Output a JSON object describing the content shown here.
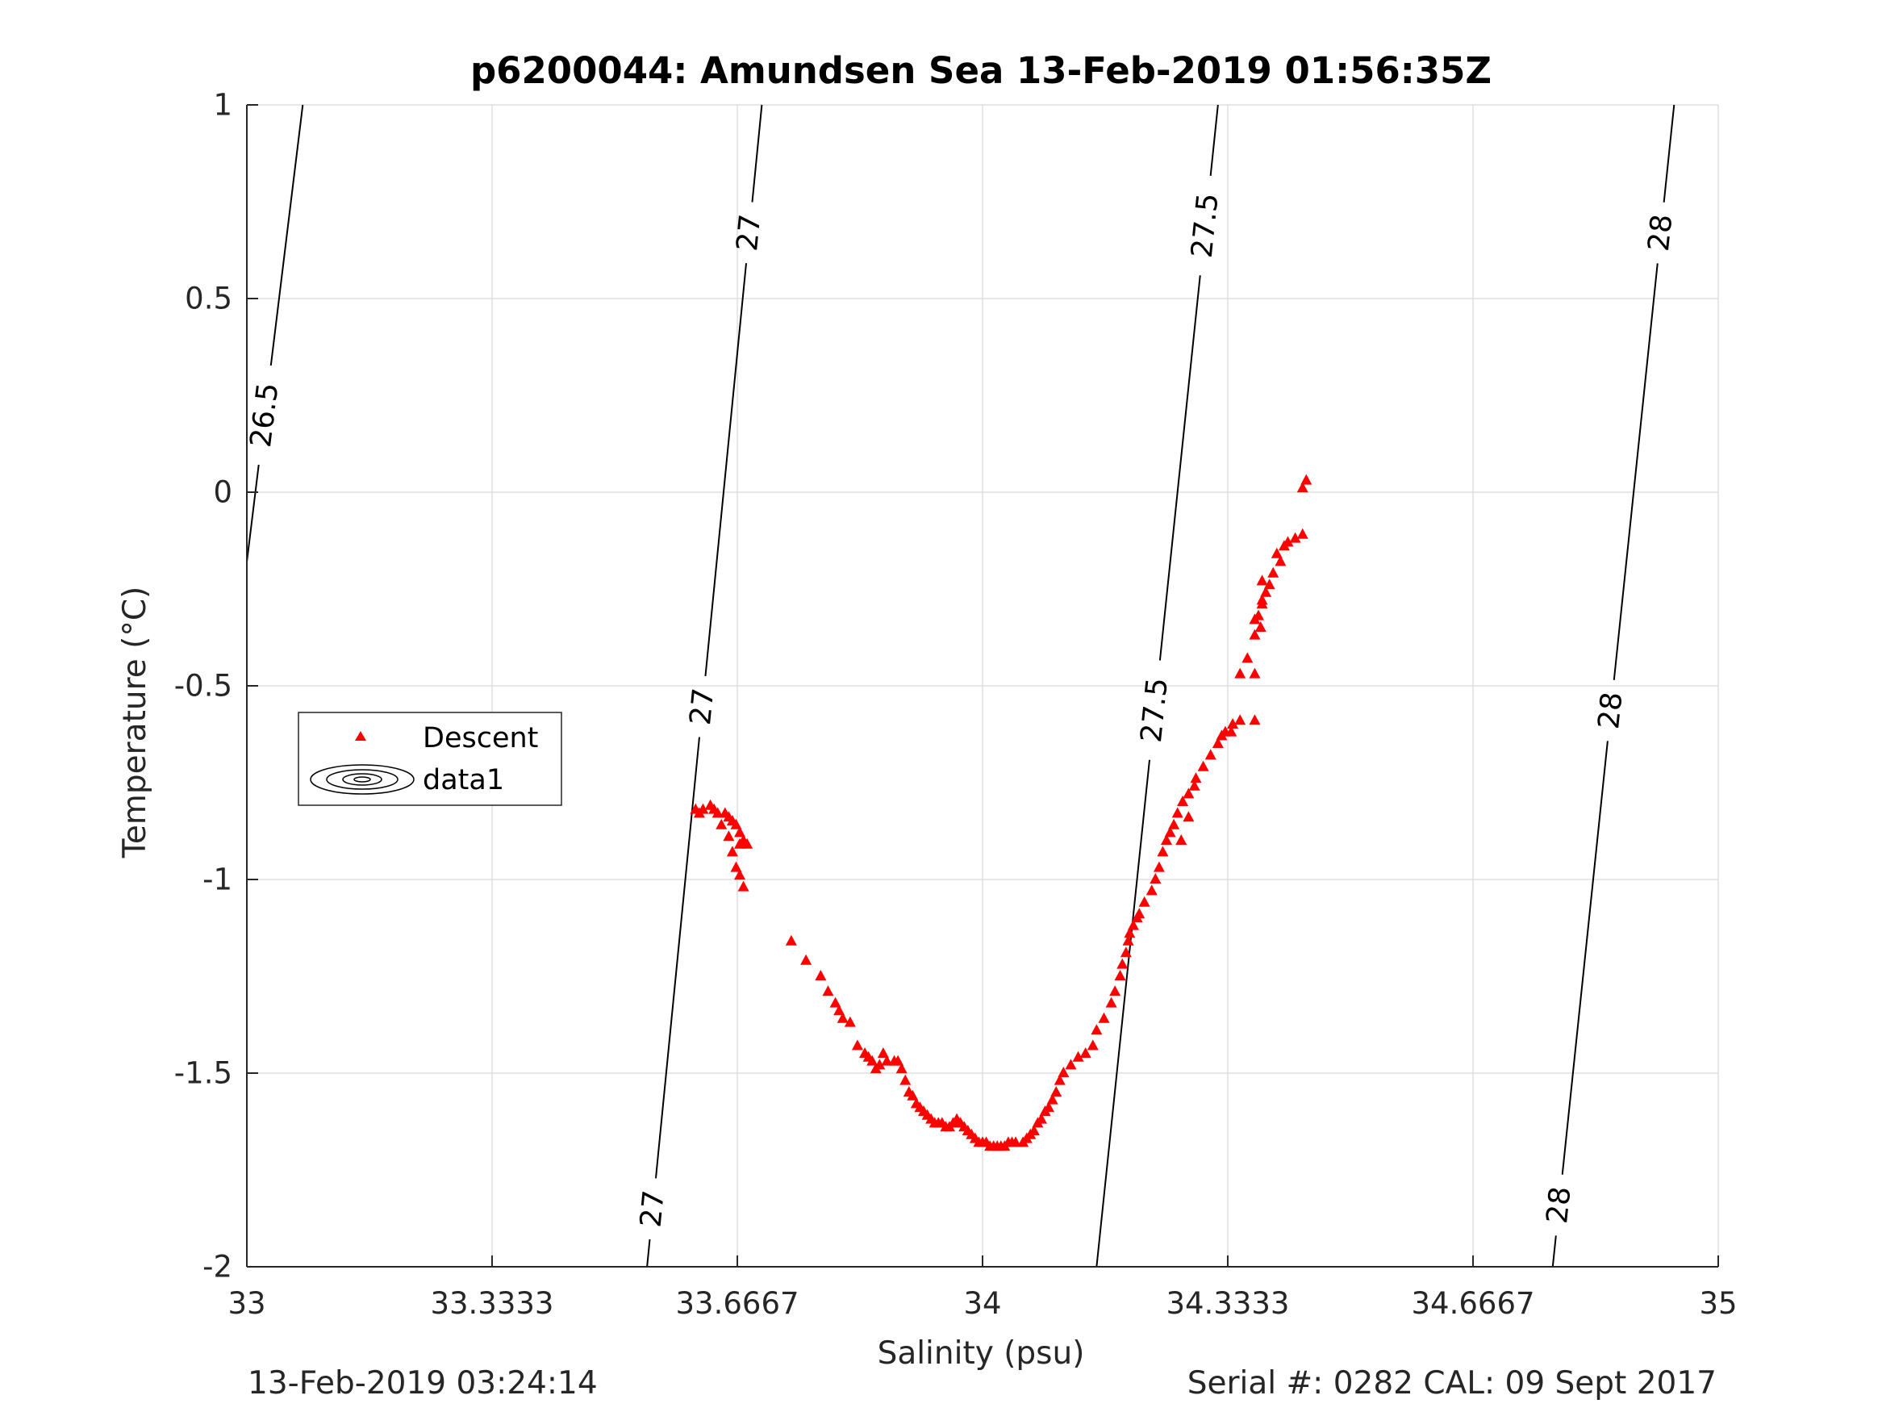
{
  "chart_data": {
    "type": "scatter",
    "title": "p6200044: Amundsen Sea 13-Feb-2019 01:56:35Z",
    "xlabel": "Salinity (psu)",
    "ylabel": "Temperature (°C)",
    "xlim": [
      33,
      35
    ],
    "ylim": [
      -2,
      1
    ],
    "xticks": [
      33,
      33.3333,
      33.6667,
      34,
      34.3333,
      34.6667,
      35
    ],
    "xtick_labels": [
      "33",
      "33.3333",
      "33.6667",
      "34",
      "34.3333",
      "34.6667",
      "35"
    ],
    "yticks": [
      -2,
      -1.5,
      -1,
      -0.5,
      0,
      0.5,
      1
    ],
    "ytick_labels": [
      "-2",
      "-1.5",
      "-1",
      "-0.5",
      "0",
      "0.5",
      "1"
    ],
    "grid": true,
    "legend": {
      "placement": "middle-left",
      "entries": [
        "Descent",
        "data1"
      ]
    },
    "series": [
      {
        "name": "Descent",
        "marker": "triangle",
        "color": "#ff0000",
        "points": [
          [
            34.44,
            0.03
          ],
          [
            34.435,
            0.01
          ],
          [
            34.435,
            -0.11
          ],
          [
            34.425,
            -0.12
          ],
          [
            34.415,
            -0.13
          ],
          [
            34.41,
            -0.14
          ],
          [
            34.4,
            -0.16
          ],
          [
            34.405,
            -0.18
          ],
          [
            34.395,
            -0.21
          ],
          [
            34.39,
            -0.24
          ],
          [
            34.385,
            -0.26
          ],
          [
            34.38,
            -0.29
          ],
          [
            34.375,
            -0.32
          ],
          [
            34.378,
            -0.35
          ],
          [
            34.37,
            -0.37
          ],
          [
            34.37,
            -0.33
          ],
          [
            34.38,
            -0.28
          ],
          [
            34.38,
            -0.23
          ],
          [
            34.36,
            -0.43
          ],
          [
            34.35,
            -0.47
          ],
          [
            34.37,
            -0.47
          ],
          [
            34.37,
            -0.59
          ],
          [
            34.35,
            -0.59
          ],
          [
            34.34,
            -0.6
          ],
          [
            34.338,
            -0.62
          ],
          [
            34.33,
            -0.62
          ],
          [
            34.325,
            -0.63
          ],
          [
            34.32,
            -0.65
          ],
          [
            34.31,
            -0.68
          ],
          [
            34.3,
            -0.71
          ],
          [
            34.29,
            -0.74
          ],
          [
            34.288,
            -0.76
          ],
          [
            34.28,
            -0.78
          ],
          [
            34.272,
            -0.8
          ],
          [
            34.265,
            -0.83
          ],
          [
            34.26,
            -0.86
          ],
          [
            34.255,
            -0.88
          ],
          [
            34.25,
            -0.9
          ],
          [
            34.245,
            -0.93
          ],
          [
            34.28,
            -0.84
          ],
          [
            34.27,
            -0.9
          ],
          [
            34.24,
            -0.97
          ],
          [
            34.235,
            -1.0
          ],
          [
            34.23,
            -1.03
          ],
          [
            34.22,
            -1.06
          ],
          [
            34.213,
            -1.09
          ],
          [
            34.205,
            -1.12
          ],
          [
            34.198,
            -1.16
          ],
          [
            34.195,
            -1.19
          ],
          [
            34.19,
            -1.22
          ],
          [
            34.187,
            -1.25
          ],
          [
            34.18,
            -1.29
          ],
          [
            34.175,
            -1.32
          ],
          [
            34.2,
            -1.14
          ],
          [
            34.21,
            -1.1
          ],
          [
            34.165,
            -1.36
          ],
          [
            34.155,
            -1.39
          ],
          [
            34.15,
            -1.43
          ],
          [
            34.14,
            -1.45
          ],
          [
            34.13,
            -1.46
          ],
          [
            34.12,
            -1.48
          ],
          [
            34.11,
            -1.5
          ],
          [
            34.105,
            -1.52
          ],
          [
            34.1,
            -1.55
          ],
          [
            34.095,
            -1.57
          ],
          [
            34.09,
            -1.59
          ],
          [
            34.085,
            -1.6
          ],
          [
            34.08,
            -1.62
          ],
          [
            34.075,
            -1.63
          ],
          [
            34.07,
            -1.65
          ],
          [
            34.065,
            -1.66
          ],
          [
            34.06,
            -1.67
          ],
          [
            34.055,
            -1.68
          ],
          [
            34.045,
            -1.68
          ],
          [
            34.04,
            -1.68
          ],
          [
            34.035,
            -1.68
          ],
          [
            34.03,
            -1.69
          ],
          [
            34.025,
            -1.69
          ],
          [
            34.02,
            -1.69
          ],
          [
            34.015,
            -1.69
          ],
          [
            34.01,
            -1.69
          ],
          [
            34.005,
            -1.68
          ],
          [
            34.0,
            -1.68
          ],
          [
            33.995,
            -1.68
          ],
          [
            33.99,
            -1.67
          ],
          [
            33.985,
            -1.66
          ],
          [
            33.98,
            -1.65
          ],
          [
            33.975,
            -1.64
          ],
          [
            33.97,
            -1.63
          ],
          [
            33.965,
            -1.62
          ],
          [
            33.96,
            -1.63
          ],
          [
            33.955,
            -1.64
          ],
          [
            33.95,
            -1.64
          ],
          [
            33.945,
            -1.63
          ],
          [
            33.94,
            -1.63
          ],
          [
            33.935,
            -1.63
          ],
          [
            33.93,
            -1.62
          ],
          [
            33.925,
            -1.61
          ],
          [
            33.92,
            -1.6
          ],
          [
            33.915,
            -1.59
          ],
          [
            33.91,
            -1.58
          ],
          [
            33.905,
            -1.56
          ],
          [
            33.9,
            -1.55
          ],
          [
            33.895,
            -1.52
          ],
          [
            33.89,
            -1.49
          ],
          [
            33.885,
            -1.47
          ],
          [
            33.88,
            -1.47
          ],
          [
            33.87,
            -1.47
          ],
          [
            33.865,
            -1.45
          ],
          [
            33.86,
            -1.48
          ],
          [
            33.855,
            -1.49
          ],
          [
            33.85,
            -1.47
          ],
          [
            33.845,
            -1.46
          ],
          [
            33.84,
            -1.45
          ],
          [
            33.83,
            -1.43
          ],
          [
            33.82,
            -1.37
          ],
          [
            33.81,
            -1.36
          ],
          [
            33.805,
            -1.34
          ],
          [
            33.8,
            -1.32
          ],
          [
            33.79,
            -1.29
          ],
          [
            33.78,
            -1.25
          ],
          [
            33.76,
            -1.21
          ],
          [
            33.74,
            -1.16
          ],
          [
            33.675,
            -1.02
          ],
          [
            33.67,
            -0.99
          ],
          [
            33.665,
            -0.97
          ],
          [
            33.66,
            -0.93
          ],
          [
            33.67,
            -0.91
          ],
          [
            33.68,
            -0.91
          ],
          [
            33.675,
            -0.9
          ],
          [
            33.67,
            -0.88
          ],
          [
            33.665,
            -0.86
          ],
          [
            33.66,
            -0.85
          ],
          [
            33.655,
            -0.84
          ],
          [
            33.65,
            -0.83
          ],
          [
            33.64,
            -0.83
          ],
          [
            33.635,
            -0.82
          ],
          [
            33.63,
            -0.81
          ],
          [
            33.62,
            -0.82
          ],
          [
            33.615,
            -0.83
          ],
          [
            33.61,
            -0.82
          ],
          [
            33.645,
            -0.86
          ],
          [
            33.655,
            -0.89
          ]
        ]
      },
      {
        "name": "data1",
        "type": "contour",
        "description_of_lines": "constant density (sigma) isolines",
        "levels": [
          {
            "value": 26.5,
            "label": "26.5",
            "line": [
              [
                33.0,
                -0.18
              ],
              [
                33.076,
                1.0
              ]
            ]
          },
          {
            "value": 27,
            "label": "27",
            "line": [
              [
                33.544,
                -2.0
              ],
              [
                33.7,
                1.0
              ]
            ]
          },
          {
            "value": 27.5,
            "label": "27.5",
            "line": [
              [
                34.155,
                -2.0
              ],
              [
                34.32,
                1.0
              ]
            ]
          },
          {
            "value": 28,
            "label": "28",
            "line": [
              [
                34.775,
                -2.0
              ],
              [
                34.94,
                1.0
              ]
            ]
          }
        ],
        "contour_labels": [
          {
            "text": "26.5",
            "at": [
              33.02,
              0.2
            ]
          },
          {
            "text": "27",
            "at": [
              33.683,
              0.67
            ]
          },
          {
            "text": "27",
            "at": [
              33.6,
              -0.55
            ]
          },
          {
            "text": "27",
            "at": [
              33.55,
              -1.85
            ]
          },
          {
            "text": "27.5",
            "at": [
              34.295,
              0.69
            ]
          },
          {
            "text": "27.5",
            "at": [
              34.22,
              -0.56
            ]
          },
          {
            "text": "28",
            "at": [
              34.92,
              0.67
            ]
          },
          {
            "text": "28",
            "at": [
              34.835,
              -0.56
            ]
          },
          {
            "text": "28",
            "at": [
              34.78,
              -1.84
            ]
          }
        ]
      }
    ]
  },
  "footer": {
    "timestamp": "13-Feb-2019 03:24:14",
    "serial_cal": "Serial #: 0282  CAL: 09 Sept 2017"
  }
}
